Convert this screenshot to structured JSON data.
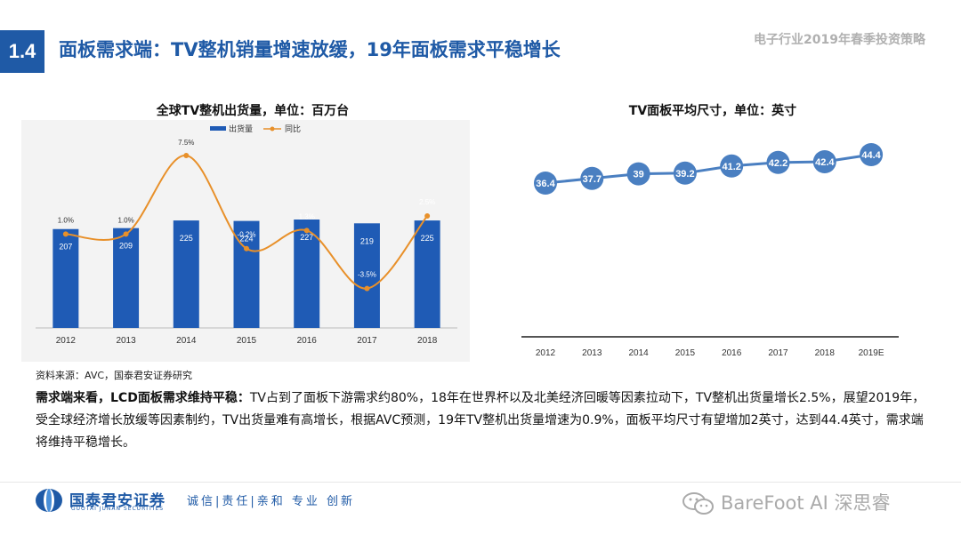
{
  "header": {
    "section_number": "1.4",
    "title": "面板需求端：TV整机销量增速放缓，19年面板需求平稳增长",
    "report_name": "电子行业2019年春季投资策略"
  },
  "chart_data": [
    {
      "type": "bar",
      "title": "全球TV整机出货量，单位：百万台",
      "categories": [
        "2012",
        "2013",
        "2014",
        "2015",
        "2016",
        "2017",
        "2018"
      ],
      "series": [
        {
          "name": "出货量",
          "type": "bar",
          "color": "#1f5bb5",
          "values": [
            207,
            209,
            225,
            224,
            227,
            219,
            225
          ]
        },
        {
          "name": "同比",
          "type": "line",
          "color": "#e8902a",
          "values": [
            1.0,
            1.0,
            7.5,
            -0.2,
            1.3,
            -3.5,
            2.5
          ],
          "labels": [
            "1.0%",
            "1.0%",
            "7.5%",
            "-0.2%",
            "1.3%",
            "-3.5%",
            "2.5%"
          ]
        }
      ],
      "legend": "top-left",
      "grid": false
    },
    {
      "type": "line",
      "title": "TV面板平均尺寸，单位：英寸",
      "categories": [
        "2012",
        "2013",
        "2014",
        "2015",
        "2016",
        "2017",
        "2018",
        "2019E"
      ],
      "series": [
        {
          "color": "#4a7fc1",
          "values": [
            36.4,
            37.7,
            39,
            39.2,
            41.2,
            42.2,
            42.4,
            44.4
          ]
        }
      ],
      "grid": false
    }
  ],
  "source": "资料来源：AVC，国泰君安证券研究",
  "summary": {
    "lead": "需求端来看，LCD面板需求维持平稳：",
    "body": "TV占到了面板下游需求约80%，18年在世界杯以及北美经济回暖等因素拉动下，TV整机出货量增长2.5%，展望2019年，受全球经济增长放缓等因素制约，TV出货量难有高增长，根据AVC预测，19年TV整机出货量增速为0.9%，面板平均尺寸有望增加2英寸，达到44.4英寸，需求端将维持平稳增长。"
  },
  "footer": {
    "logo_cn": "国泰君安证券",
    "logo_en": "GUOTAI JUNAN SECURITIES",
    "slogan": "诚信|责任|亲和 专业 创新",
    "watermark": "BareFoot AI 深思睿",
    "logo_icon": "guotai-junan-logo-icon",
    "wechat_icon": "wechat-icon"
  }
}
